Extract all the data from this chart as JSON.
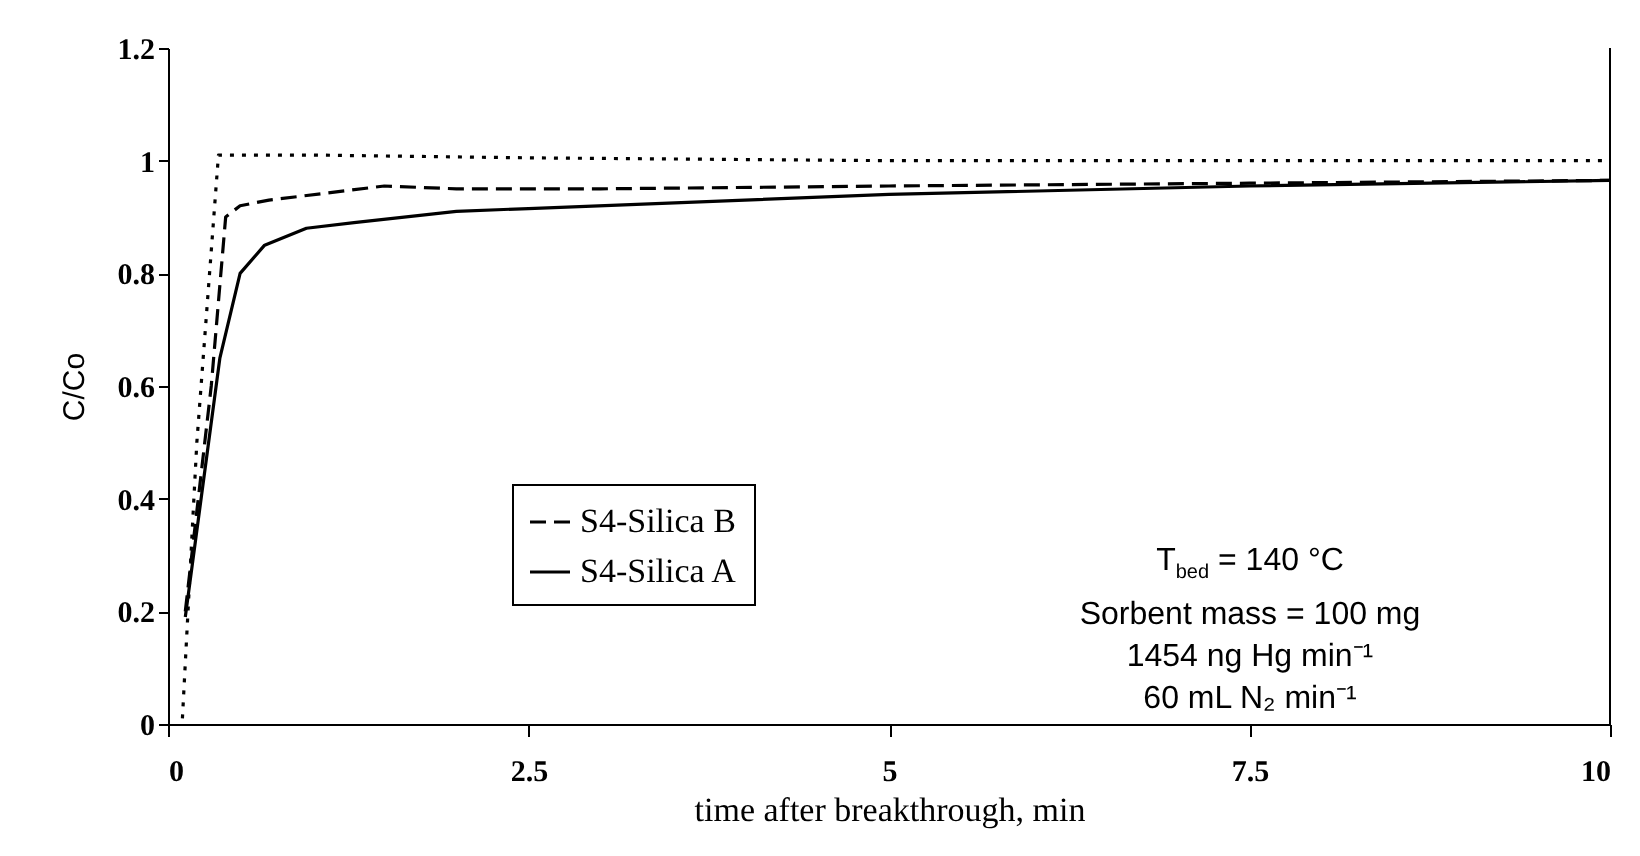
{
  "chart_data": {
    "type": "line",
    "xlabel": "time after breakthrough, min",
    "ylabel": "C/Co",
    "xlim": [
      0,
      10
    ],
    "xticks": [
      0,
      2.5,
      5,
      7.5,
      10
    ],
    "ylim": [
      0,
      1.2
    ],
    "yticks": [
      0,
      0.2,
      0.4,
      0.6,
      0.8,
      1,
      1.2
    ],
    "legend": "left",
    "annotations": [
      "T$_{bed}$ = 140 °C",
      "Sorbent mass = 100 mg",
      "1454 ng Hg min⁻¹",
      "60 mL N₂ min⁻¹"
    ],
    "series": [
      {
        "name": "S4-Silica B",
        "color": "#000000",
        "line_style": "dashed",
        "x": [
          0.12,
          0.3,
          0.4,
          0.5,
          0.7,
          1.5,
          2,
          3,
          5,
          7.5,
          10
        ],
        "values": [
          0.2,
          0.6,
          0.9,
          0.92,
          0.93,
          0.955,
          0.95,
          0.95,
          0.955,
          0.96,
          0.965
        ]
      },
      {
        "name": "S4-Silica A",
        "color": "#000000",
        "line_style": "solid",
        "x": [
          0.12,
          0.36,
          0.5,
          0.67,
          0.96,
          1.29,
          2,
          2.5,
          4,
          5,
          7.5,
          10
        ],
        "values": [
          0.19,
          0.65,
          0.8,
          0.85,
          0.88,
          0.89,
          0.91,
          0.915,
          0.93,
          0.94,
          0.955,
          0.965
        ]
      },
      {
        "color": "#000000",
        "line_style": "dotted",
        "x": [
          0.1,
          0.2,
          0.35,
          1,
          2.5,
          5,
          7.5,
          10
        ],
        "values": [
          0.01,
          0.5,
          1.01,
          1.01,
          1.005,
          1.0,
          1.0,
          1.0
        ]
      }
    ]
  }
}
